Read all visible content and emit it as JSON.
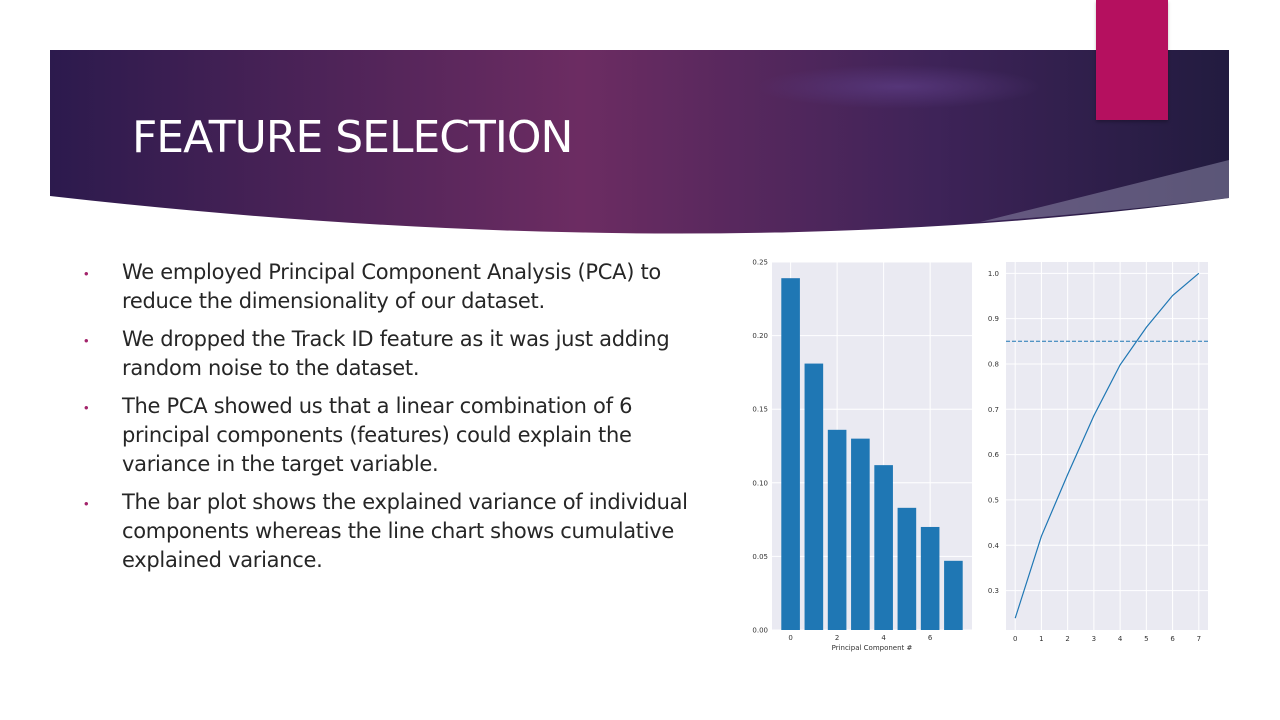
{
  "slide": {
    "title": "FEATURE SELECTION",
    "colors": {
      "accent": "#b5105f",
      "bullet_marker": "#a3246b",
      "band_dark": "#2d1b4e",
      "band_magenta": "#6e2d63",
      "bar": "#1f77b4"
    },
    "bullets": [
      {
        "text": "We employed Principal Component Analysis (PCA)  to reduce the dimensionality of our dataset."
      },
      {
        "text": "We dropped the Track ID feature as it was just adding random noise to the dataset."
      },
      {
        "text": "The PCA showed us that a linear combination of 6 principal components (features) could explain the variance in the target variable."
      },
      {
        "text": "The bar plot shows the explained variance of individual components whereas the line chart shows cumulative explained variance."
      }
    ]
  },
  "chart_data": [
    {
      "type": "bar",
      "x": [
        0,
        1,
        2,
        3,
        4,
        5,
        6,
        7
      ],
      "values": [
        0.239,
        0.181,
        0.136,
        0.13,
        0.112,
        0.083,
        0.07,
        0.047
      ],
      "xlabel": "Principal Component #",
      "ylabel": "",
      "ylim": [
        0,
        0.25
      ],
      "xlim": [
        -0.8,
        7.8
      ],
      "xticks": [
        0,
        2,
        4,
        6
      ],
      "yticks": [
        0.0,
        0.05,
        0.1,
        0.15,
        0.2,
        0.25
      ],
      "ytick_labels": [
        "0.00",
        "0.05",
        "0.10",
        "0.15",
        "0.20",
        "0.25"
      ],
      "grid": true,
      "color": "#1f77b4",
      "background": "#eaeaf2"
    },
    {
      "type": "line",
      "x": [
        0,
        1,
        2,
        3,
        4,
        5,
        6,
        7
      ],
      "values": [
        0.239,
        0.42,
        0.556,
        0.686,
        0.798,
        0.881,
        0.951,
        1.0
      ],
      "xlabel": "",
      "ylabel": "",
      "ylim": [
        0.213,
        1.025
      ],
      "xlim": [
        -0.35,
        7.35
      ],
      "xticks": [
        0,
        1,
        2,
        3,
        4,
        5,
        6,
        7
      ],
      "yticks": [
        0.3,
        0.4,
        0.5,
        0.6,
        0.7,
        0.8,
        0.9,
        1.0
      ],
      "ytick_labels": [
        "0.3",
        "0.4",
        "0.5",
        "0.6",
        "0.7",
        "0.8",
        "0.9",
        "1.0"
      ],
      "threshold": 0.85,
      "threshold_style": "dashed",
      "grid": true,
      "color": "#1f77b4",
      "background": "#eaeaf2"
    }
  ]
}
